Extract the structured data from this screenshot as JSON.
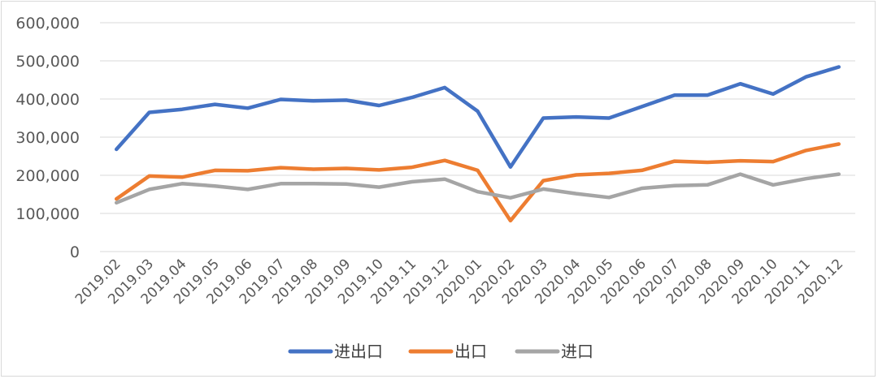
{
  "chart_data": {
    "type": "line",
    "title": "",
    "xlabel": "",
    "ylabel": "",
    "ylim": [
      0,
      600000
    ],
    "yticks": [
      "0",
      "100,000",
      "200,000",
      "300,000",
      "400,000",
      "500,000",
      "600,000"
    ],
    "grid": true,
    "legend_position": "bottom",
    "categories": [
      "2019.02",
      "2019.03",
      "2019.04",
      "2019.05",
      "2019.06",
      "2019.07",
      "2019.08",
      "2019.09",
      "2019.10",
      "2019.11",
      "2019.12",
      "2020.01",
      "2020.02",
      "2020.03",
      "2020.04",
      "2020.05",
      "2020.06",
      "2020.07",
      "2020.08",
      "2020.09",
      "2020.10",
      "2020.11",
      "2020.12"
    ],
    "series": [
      {
        "name": "进出口",
        "color": "#4472C4",
        "values": [
          268000,
          365000,
          373000,
          386000,
          376000,
          399000,
          395000,
          397000,
          383000,
          404000,
          430000,
          368000,
          222000,
          350000,
          353000,
          350000,
          380000,
          410000,
          410000,
          440000,
          413000,
          458000,
          484000
        ]
      },
      {
        "name": "出口",
        "color": "#ED7D31",
        "values": [
          138000,
          198000,
          195000,
          213000,
          212000,
          220000,
          216000,
          218000,
          214000,
          221000,
          239000,
          213000,
          81000,
          186000,
          201000,
          205000,
          213000,
          237000,
          234000,
          238000,
          236000,
          265000,
          282000
        ]
      },
      {
        "name": "进口",
        "color": "#A5A5A5",
        "values": [
          128000,
          163000,
          178000,
          172000,
          163000,
          178000,
          178000,
          177000,
          169000,
          183000,
          190000,
          157000,
          141000,
          164000,
          152000,
          142000,
          166000,
          173000,
          175000,
          203000,
          175000,
          191000,
          203000
        ]
      }
    ]
  }
}
